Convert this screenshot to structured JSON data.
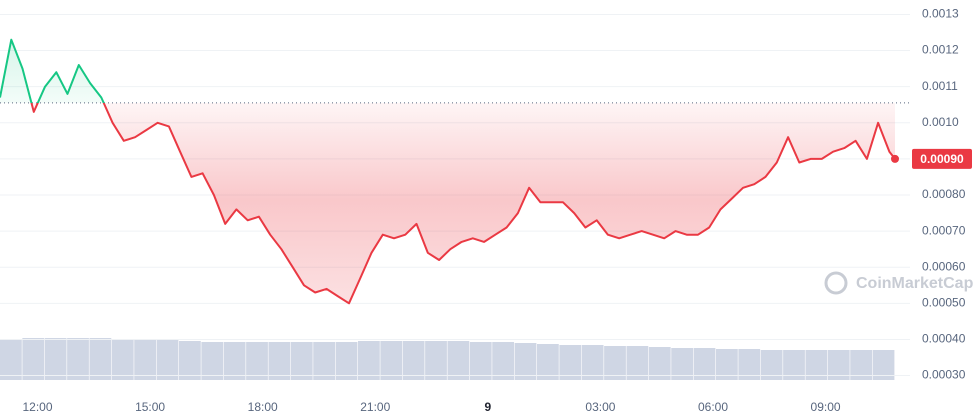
{
  "chart_data": {
    "type": "line",
    "x": [
      -1,
      -0.7,
      -0.4,
      -0.1,
      0.2,
      0.5,
      0.8,
      1.1,
      1.4,
      1.7,
      2,
      2.3,
      2.6,
      2.9,
      3.2,
      3.5,
      3.8,
      4.1,
      4.4,
      4.7,
      5,
      5.3,
      5.6,
      5.9,
      6.2,
      6.5,
      6.8,
      7.1,
      7.4,
      7.7,
      8,
      8.3,
      8.6,
      8.9,
      9.2,
      9.5,
      9.8,
      10.1,
      10.4,
      10.7,
      11,
      11.3,
      11.6,
      11.9,
      12.2,
      12.5,
      12.8,
      13.1,
      13.4,
      13.7,
      14,
      14.3,
      14.6,
      14.9,
      15.2,
      15.5,
      15.8,
      16.1,
      16.4,
      16.7,
      17,
      17.3,
      17.6,
      17.9,
      18.2,
      18.5,
      18.8,
      19.1,
      19.4,
      19.7,
      20,
      20.3,
      20.6,
      20.9,
      21.2,
      21.5,
      21.8,
      22.1,
      22.4,
      22.7,
      22.85
    ],
    "values": [
      0.00107,
      0.00123,
      0.00115,
      0.00103,
      0.0011,
      0.00114,
      0.00108,
      0.00116,
      0.00111,
      0.00107,
      0.001,
      0.00095,
      0.00096,
      0.00098,
      0.001,
      0.00099,
      0.00092,
      0.00085,
      0.00086,
      0.0008,
      0.00072,
      0.00076,
      0.00073,
      0.00074,
      0.00069,
      0.00065,
      0.0006,
      0.00055,
      0.00053,
      0.00054,
      0.00052,
      0.0005,
      0.00057,
      0.00064,
      0.00069,
      0.00068,
      0.00069,
      0.00072,
      0.00064,
      0.00062,
      0.00065,
      0.00067,
      0.00068,
      0.00067,
      0.00069,
      0.00071,
      0.00075,
      0.00082,
      0.00078,
      0.00078,
      0.00078,
      0.00075,
      0.00071,
      0.00073,
      0.00069,
      0.00068,
      0.00069,
      0.0007,
      0.00069,
      0.00068,
      0.0007,
      0.00069,
      0.00069,
      0.00071,
      0.00076,
      0.00079,
      0.00082,
      0.00083,
      0.00085,
      0.00089,
      0.00096,
      0.00089,
      0.0009,
      0.0009,
      0.00092,
      0.00093,
      0.00095,
      0.0009,
      0.001,
      0.00092,
      0.0009
    ],
    "up_color": "#16c784",
    "down_color": "#ea3943",
    "reference_line": 0.001055,
    "last_price": {
      "value": 0.0009,
      "label": "0.00090"
    },
    "xlim": [
      -1,
      22.85
    ],
    "xticks": [
      {
        "value": 0,
        "label": "12:00"
      },
      {
        "value": 3,
        "label": "15:00"
      },
      {
        "value": 6,
        "label": "18:00"
      },
      {
        "value": 9,
        "label": "21:00"
      },
      {
        "value": 12,
        "label": "9"
      },
      {
        "value": 15,
        "label": "03:00"
      },
      {
        "value": 18,
        "label": "06:00"
      },
      {
        "value": 21,
        "label": "09:00"
      }
    ],
    "ylim": [
      0.00026,
      0.00134
    ],
    "yticks": [
      0.0013,
      0.0012,
      0.0011,
      {
        "value": 0.001,
        "label": "0.0010"
      },
      {
        "value": 0.0009,
        "label": "0.00090"
      },
      {
        "value": 0.0008,
        "label": "0.00080"
      },
      {
        "value": 0.0007,
        "label": "0.00070"
      },
      {
        "value": 0.0006,
        "label": "0.00060"
      },
      {
        "value": 0.0005,
        "label": "0.00050"
      },
      {
        "value": 0.0004,
        "label": "0.00040"
      },
      {
        "value": 0.0003,
        "label": "0.00030"
      }
    ],
    "grid": true,
    "volume": {
      "color": "#cfd6e4",
      "values": [
        41,
        42,
        42,
        42,
        42,
        41,
        41,
        40,
        39,
        38,
        38,
        38,
        38,
        38,
        38,
        38,
        39,
        39,
        39,
        39,
        39,
        38,
        38,
        37,
        36,
        35,
        35,
        34,
        34,
        33,
        32,
        32,
        31,
        31,
        30,
        30,
        30,
        30,
        30,
        30
      ]
    },
    "watermark": "CoinMarketCap"
  }
}
